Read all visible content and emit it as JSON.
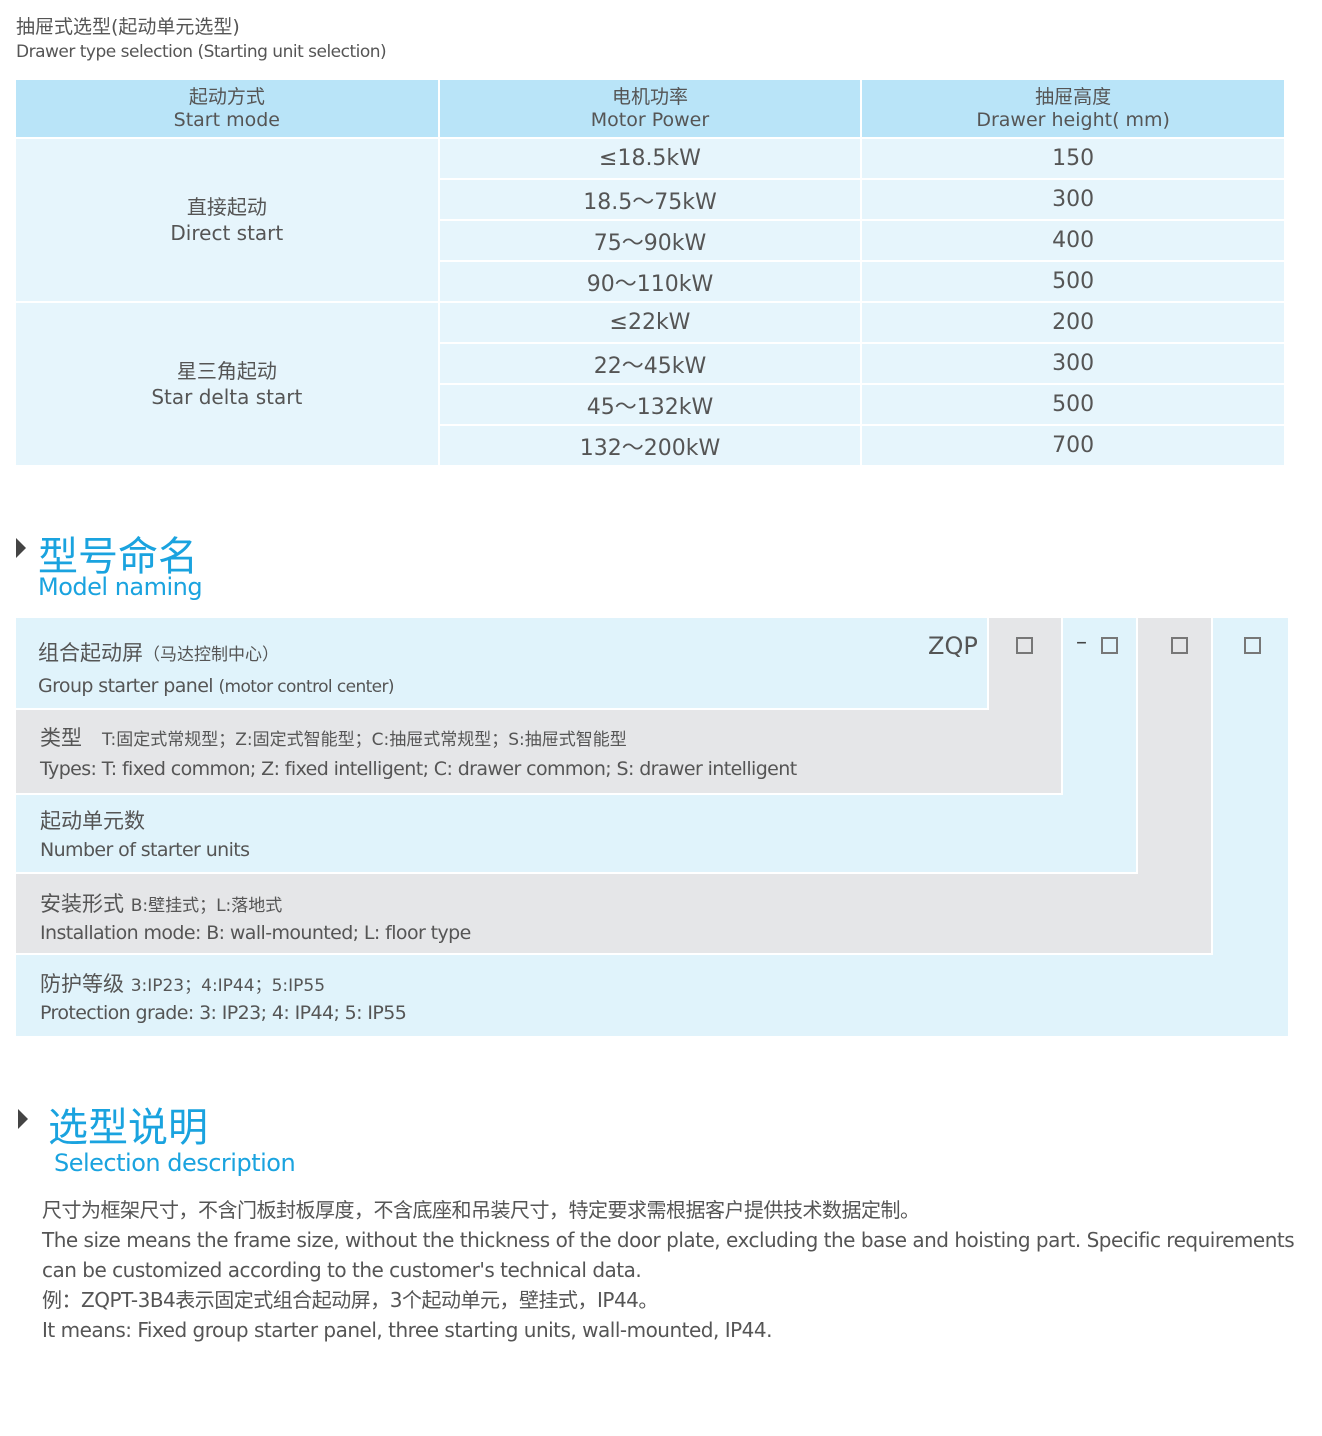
{
  "drawer": {
    "title_cn": "抽屉式选型(起动单元选型)",
    "title_en": "Drawer type selection (Starting unit selection)",
    "headers": [
      {
        "cn": "起动方式",
        "en": "Start mode"
      },
      {
        "cn": "电机功率",
        "en": "Motor Power"
      },
      {
        "cn": "抽屉高度",
        "en": "Drawer height( mm)"
      }
    ],
    "groups": [
      {
        "cn": "直接起动",
        "en": "Direct start",
        "rows": [
          [
            "≤18.5kW",
            "150"
          ],
          [
            "18.5～75kW",
            "300"
          ],
          [
            "75～90kW",
            "400"
          ],
          [
            "90～110kW",
            "500"
          ]
        ]
      },
      {
        "cn": "星三角起动",
        "en": "Star delta start",
        "rows": [
          [
            "≤22kW",
            "200"
          ],
          [
            "22～45kW",
            "300"
          ],
          [
            "45～132kW",
            "500"
          ],
          [
            "132～200kW",
            "700"
          ]
        ]
      }
    ]
  },
  "model": {
    "title_cn": "型号命名",
    "title_en": "Model naming",
    "prefix": "ZQP",
    "dash": "–",
    "rows": [
      {
        "cn": "组合起动屏",
        "cn_note": "（马达控制中心）",
        "en": "Group starter panel",
        "en_note": "(motor control center)"
      },
      {
        "cn": "类型",
        "cn_note": "T:固定式常规型；Z:固定式智能型；C:抽屉式常规型；S:抽屉式智能型",
        "en": "Types: T: fixed common; Z: fixed intelligent; C: drawer common; S: drawer intelligent"
      },
      {
        "cn": "起动单元数",
        "en": "Number of starter units"
      },
      {
        "cn": "安装形式",
        "cn_note": "B:壁挂式；L:落地式",
        "en": "Installation mode: B: wall-mounted; L: floor type"
      },
      {
        "cn": "防护等级",
        "cn_note": "3:IP23；4:IP44；5:IP55",
        "en": "Protection grade:  3: IP23; 4: IP44; 5: IP55"
      }
    ]
  },
  "selection": {
    "title_cn": "选型说明",
    "title_en": "Selection description",
    "lines": [
      "尺寸为框架尺寸，不含门板封板厚度，不含底座和吊装尺寸，特定要求需根据客户提供技术数据定制。",
      "The size means the frame size, without the thickness of the door plate, excluding the base and hoisting part. Specific requirements can be customized according to the customer's technical data.",
      "例：ZQPT-3B4表示固定式组合起动屏，3个起动单元，壁挂式，IP44。",
      "It means: Fixed group starter panel, three starting units, wall-mounted, IP44."
    ]
  },
  "colors": {
    "accent": "#1aa3df",
    "header_bg": "#b9e4f8",
    "row_bg": "#e6f5fc",
    "gray": "#e5e6e8"
  }
}
